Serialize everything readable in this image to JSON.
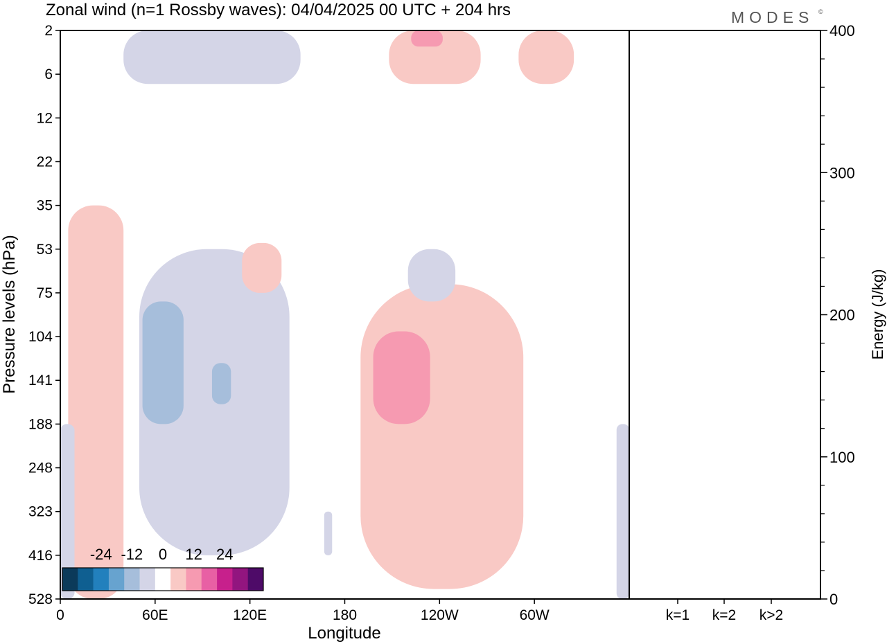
{
  "title": "Zonal wind (n=1 Rossby waves):  04/04/2025  00 UTC  + 204 hrs",
  "brand": "MODES",
  "brand_mark": "©",
  "chart_data": [
    {
      "type": "heatmap",
      "title": "Zonal wind (n=1 Rossby waves):  04/04/2025  00 UTC  + 204 hrs",
      "xlabel": "Longitude",
      "ylabel": "Pressure levels (hPa)",
      "x_tick_labels": [
        "0",
        "60E",
        "120E",
        "180",
        "120W",
        "60W"
      ],
      "x_tick_values_deg_east": [
        0,
        60,
        120,
        180,
        240,
        300
      ],
      "xlim_deg_east": [
        0,
        360
      ],
      "y_tick_labels": [
        "2",
        "6",
        "12",
        "22",
        "35",
        "53",
        "75",
        "104",
        "141",
        "188",
        "248",
        "323",
        "416",
        "528"
      ],
      "y_levels_hPa": [
        2,
        6,
        12,
        22,
        35,
        53,
        75,
        104,
        141,
        188,
        248,
        323,
        416,
        528
      ],
      "y_axis_inverted": true,
      "colorbar": {
        "tick_labels": [
          "-24",
          "-12",
          "0",
          "12",
          "24"
        ],
        "colors": [
          "#0b3a5a",
          "#0f5f91",
          "#2280bd",
          "#67a3cf",
          "#a6bedb",
          "#d4d5e7",
          "#ffffff",
          "#f9c9c5",
          "#f69ab1",
          "#e860a4",
          "#c7208c",
          "#92157f",
          "#4e0b68"
        ]
      },
      "shaded_regions": [
        {
          "sign": "negative",
          "level": -6,
          "color": "#d4d5e7",
          "lon_range": [
            40,
            152
          ],
          "pressure_range_hPa": [
            2,
            7
          ]
        },
        {
          "sign": "positive",
          "level": 6,
          "color": "#f9c9c5",
          "lon_range": [
            208,
            266
          ],
          "pressure_range_hPa": [
            2,
            7
          ]
        },
        {
          "sign": "positive",
          "level": 12,
          "color": "#f69ab1",
          "lon_range": [
            222,
            242
          ],
          "pressure_range_hPa": [
            2,
            3
          ]
        },
        {
          "sign": "positive",
          "level": 6,
          "color": "#f9c9c5",
          "lon_range": [
            290,
            325
          ],
          "pressure_range_hPa": [
            2,
            7
          ]
        },
        {
          "sign": "positive",
          "level": 6,
          "color": "#f9c9c5",
          "lon_range": [
            5,
            40
          ],
          "pressure_range_hPa": [
            35,
            528
          ]
        },
        {
          "sign": "negative",
          "level": -6,
          "color": "#d4d5e7",
          "lon_range": [
            50,
            145
          ],
          "pressure_range_hPa": [
            53,
            416
          ]
        },
        {
          "sign": "negative",
          "level": -12,
          "color": "#a6bedb",
          "lon_range": [
            52,
            78
          ],
          "pressure_range_hPa": [
            80,
            188
          ]
        },
        {
          "sign": "negative",
          "level": -12,
          "color": "#a6bedb",
          "lon_range": [
            96,
            108
          ],
          "pressure_range_hPa": [
            125,
            165
          ]
        },
        {
          "sign": "positive",
          "level": 6,
          "color": "#f9c9c5",
          "lon_range": [
            115,
            140
          ],
          "pressure_range_hPa": [
            50,
            75
          ]
        },
        {
          "sign": "positive",
          "level": 6,
          "color": "#f9c9c5",
          "lon_range": [
            190,
            293
          ],
          "pressure_range_hPa": [
            70,
            500
          ]
        },
        {
          "sign": "positive",
          "level": 12,
          "color": "#f69ab1",
          "lon_range": [
            198,
            234
          ],
          "pressure_range_hPa": [
            100,
            188
          ]
        },
        {
          "sign": "negative",
          "level": -6,
          "color": "#d4d5e7",
          "lon_range": [
            220,
            250
          ],
          "pressure_range_hPa": [
            53,
            80
          ]
        },
        {
          "sign": "negative",
          "level": -6,
          "color": "#d4d5e7",
          "lon_range": [
            0,
            9
          ],
          "pressure_range_hPa": [
            188,
            528
          ]
        },
        {
          "sign": "negative",
          "level": -6,
          "color": "#d4d5e7",
          "lon_range": [
            167,
            172
          ],
          "pressure_range_hPa": [
            323,
            416
          ]
        },
        {
          "sign": "negative",
          "level": -6,
          "color": "#d4d5e7",
          "lon_range": [
            352,
            360
          ],
          "pressure_range_hPa": [
            188,
            528
          ]
        }
      ]
    },
    {
      "type": "bar",
      "categories": [
        "k=1",
        "k=2",
        "k>2"
      ],
      "values": [
        0.5,
        0.3,
        0.2
      ],
      "ylabel": "Energy (J/kg)",
      "ylim": [
        0,
        400
      ],
      "y_tick_labels": [
        "0",
        "100",
        "200",
        "300",
        "400"
      ]
    }
  ]
}
